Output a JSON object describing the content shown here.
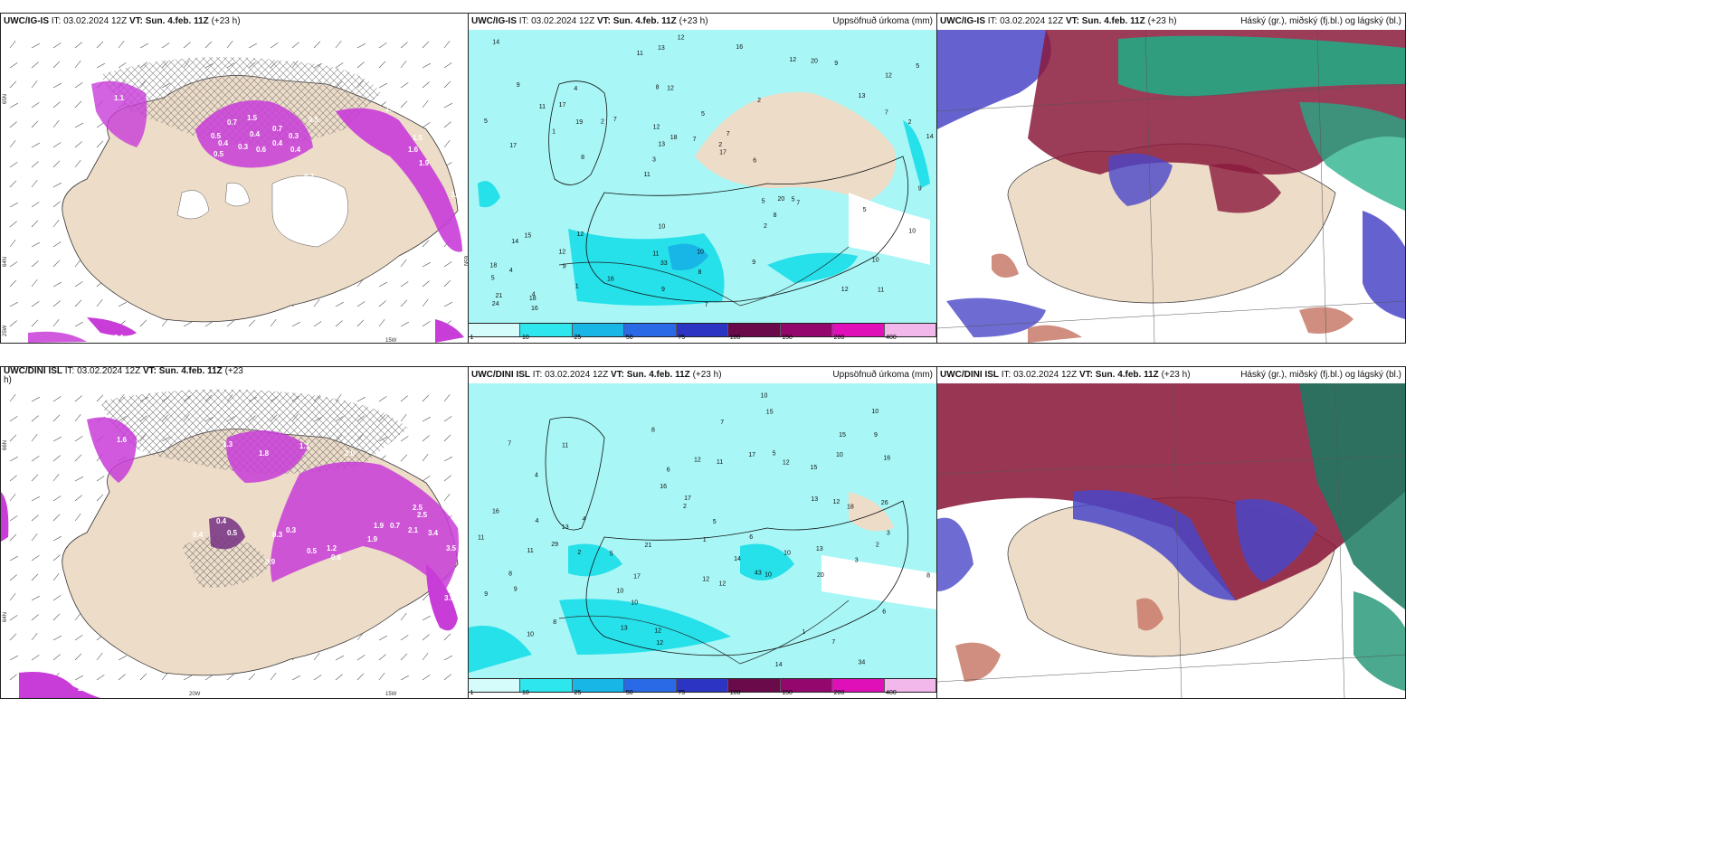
{
  "colors": {
    "land": "#eddcc8",
    "snow": "#c83cd8",
    "snow_dark": "#7a3a86",
    "precip_light": "#a8f6f6",
    "precip_mid": "#26e0ea",
    "ptype_red": "#8a1a3c",
    "ptype_blue": "#4a46c8",
    "ptype_green": "#1fae86"
  },
  "top_row": [
    {
      "model": "UWC/IG-IS",
      "it_label": "IT:",
      "it_value": "03.02.2024 12Z",
      "vt_label": "VT:",
      "vt_value": "Sun. 4.feb. 11Z",
      "lead": "(+23 h)",
      "right_title": ""
    },
    {
      "model": "UWC/IG-IS",
      "it_label": "IT:",
      "it_value": "03.02.2024 12Z",
      "vt_label": "VT:",
      "vt_value": "Sun. 4.feb. 11Z",
      "lead": "(+23 h)",
      "right_title": "Uppsöfnuð úrkoma (mm)"
    },
    {
      "model": "UWC/IG-IS",
      "it_label": "IT:",
      "it_value": "03.02.2024 12Z",
      "vt_label": "VT:",
      "vt_value": "Sun. 4.feb. 11Z",
      "lead": "(+23 h)",
      "right_title": "Háský (gr.), miðský (fj.bl.) og lágský (bl.)"
    }
  ],
  "bottom_row": [
    {
      "model": "UWC/DINI ISL",
      "it_label": "IT:",
      "it_value": "03.02.2024 12Z",
      "vt_label": "VT:",
      "vt_value": "Sun. 4.feb. 11Z",
      "lead": "(+23",
      "lead2": "h)",
      "right_title": ""
    },
    {
      "model": "UWC/DINI ISL",
      "it_label": "IT:",
      "it_value": "03.02.2024 12Z",
      "vt_label": "VT:",
      "vt_value": "Sun. 4.feb. 11Z",
      "lead": "(+23 h)",
      "right_title": "Uppsöfnuð úrkoma (mm)"
    },
    {
      "model": "UWC/DINI ISL",
      "it_label": "IT:",
      "it_value": "03.02.2024 12Z",
      "vt_label": "VT:",
      "vt_value": "Sun. 4.feb. 11Z",
      "lead": "(+23 h)",
      "right_title": "Háský (gr.), miðský (fj.bl.) og lágský (bl.)"
    }
  ],
  "colorbar": {
    "ticks": [
      "1",
      "10",
      "25",
      "50",
      "75",
      "100",
      "150",
      "200",
      "400"
    ],
    "colors": [
      "#d6fbfb",
      "#2ee6ee",
      "#18b6e6",
      "#2a6ae6",
      "#2c34c4",
      "#6a0a4a",
      "#94086e",
      "#e010b8",
      "#f2b8ec"
    ]
  },
  "axis_labels": {
    "lat65_top": "65N",
    "lat64_top": "64N",
    "lon25": "25W",
    "lon15": "15W",
    "lon20": "20W",
    "lat66_bottom": "66N",
    "lat64_bottom": "64N",
    "lat65_right": "65N"
  },
  "precip_numbers_top": [
    "11",
    "17",
    "12",
    "11",
    "2",
    "4",
    "8",
    "5",
    "15",
    "7",
    "5",
    "9",
    "12",
    "7",
    "7",
    "9",
    "13",
    "14",
    "5",
    "7",
    "3",
    "11",
    "13",
    "4",
    "12",
    "12",
    "12",
    "10",
    "5",
    "7",
    "2",
    "1",
    "2",
    "1",
    "2",
    "2",
    "21",
    "33",
    "17",
    "14",
    "13",
    "5",
    "8",
    "9",
    "12",
    "16",
    "24",
    "10",
    "9",
    "12",
    "8",
    "5",
    "17",
    "20",
    "18",
    "16",
    "11",
    "18",
    "10",
    "10",
    "16",
    "20",
    "19",
    "18",
    "14",
    "11",
    "9",
    "12",
    "8",
    "7",
    "4",
    "6",
    "5",
    "9"
  ],
  "precip_numbers_bottom": [
    "34",
    "29",
    "43",
    "7",
    "6",
    "4",
    "8",
    "5",
    "15",
    "12",
    "12",
    "7",
    "10",
    "8",
    "6",
    "9",
    "13",
    "5",
    "16",
    "10",
    "10",
    "11",
    "12",
    "8",
    "3",
    "4",
    "2",
    "1",
    "2",
    "9",
    "10",
    "11",
    "10",
    "5",
    "6",
    "3",
    "2",
    "1",
    "15",
    "14",
    "17",
    "12",
    "13",
    "10",
    "21",
    "13",
    "16",
    "15",
    "17",
    "12",
    "10",
    "26",
    "20",
    "18",
    "16",
    "11",
    "12",
    "17",
    "14",
    "13",
    "12",
    "10",
    "11",
    "7",
    "9",
    "8",
    "4"
  ],
  "snow_values_top": [
    "0.5",
    "0.7",
    "1.5",
    "0.3",
    "0.5",
    "0.4",
    "0.6",
    "0.3",
    "0.4",
    "0.7",
    "0.4",
    "0.5",
    "0.4",
    "2.7",
    "1.5",
    "1.6",
    "1.9",
    "3.0",
    "2.1",
    "0.7",
    "1.1"
  ],
  "snow_values_bottom": [
    "1.6",
    "2.5",
    "1.9",
    "2.0",
    "1.8",
    "0.3",
    "0.5",
    "0.3",
    "0.4",
    "1.9",
    "0.7",
    "2.1",
    "2.5",
    "3.4",
    "3.5",
    "1.2",
    "0.5",
    "0.6",
    "2.6",
    "0.4",
    "0.9",
    "1.1",
    "1.3",
    "3.5"
  ]
}
